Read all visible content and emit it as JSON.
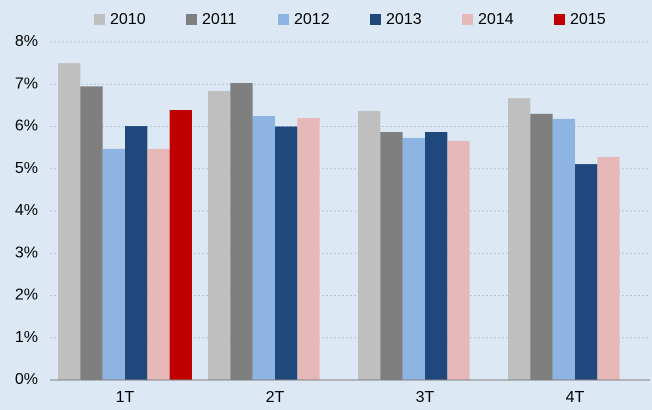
{
  "chart_data": {
    "type": "bar",
    "categories": [
      "1T",
      "2T",
      "3T",
      "4T"
    ],
    "series": [
      {
        "name": "2010",
        "color": "#bfbfbf",
        "values": [
          7.5,
          6.84,
          6.37,
          6.67
        ]
      },
      {
        "name": "2011",
        "color": "#7f7f7f",
        "values": [
          6.95,
          7.03,
          5.87,
          6.3
        ]
      },
      {
        "name": "2012",
        "color": "#8eb4e3",
        "values": [
          5.47,
          6.25,
          5.73,
          6.18
        ]
      },
      {
        "name": "2013",
        "color": "#1f497d",
        "values": [
          6.01,
          6.0,
          5.87,
          5.11
        ]
      },
      {
        "name": "2014",
        "color": "#e6b9b8",
        "values": [
          5.47,
          6.2,
          5.66,
          5.28
        ]
      },
      {
        "name": "2015",
        "color": "#c00000",
        "values": [
          6.39,
          null,
          null,
          null
        ]
      }
    ],
    "ylim": [
      0,
      8
    ],
    "yticks": [
      {
        "value": 0,
        "label": "0%"
      },
      {
        "value": 1,
        "label": "1%"
      },
      {
        "value": 2,
        "label": "2%"
      },
      {
        "value": 3,
        "label": "3%"
      },
      {
        "value": 4,
        "label": "4%"
      },
      {
        "value": 5,
        "label": "5%"
      },
      {
        "value": 6,
        "label": "6%"
      },
      {
        "value": 7,
        "label": "7%"
      },
      {
        "value": 8,
        "label": "8%"
      }
    ],
    "grid": true,
    "legend": "top"
  }
}
